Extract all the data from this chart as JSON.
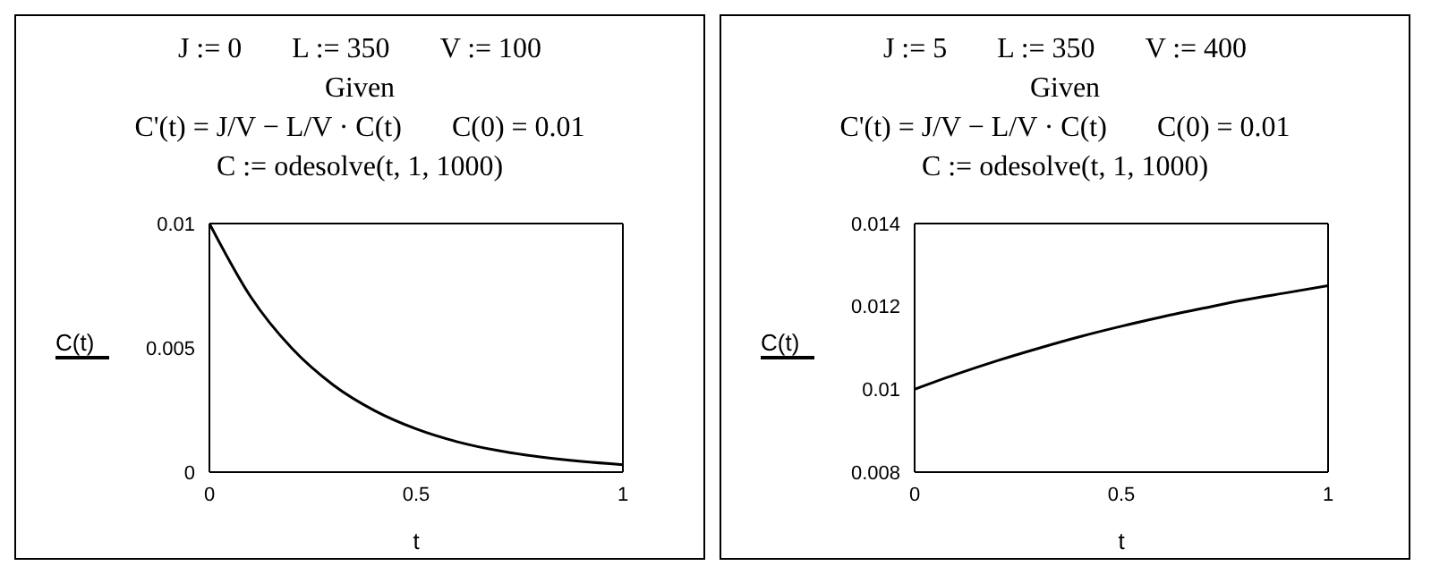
{
  "chart_data": [
    {
      "type": "line",
      "x": [
        0,
        0.1,
        0.2,
        0.3,
        0.4,
        0.5,
        0.6,
        0.7,
        0.8,
        0.9,
        1
      ],
      "series": [
        {
          "color": "#000000",
          "values": [
            0.01,
            0.00705,
            0.00497,
            0.0035,
            0.00247,
            0.00174,
            0.00122,
            0.00086,
            0.00061,
            0.00043,
            0.0003
          ]
        }
      ],
      "xlabel": "t",
      "ylabel": "C(t)",
      "xlim": [
        0,
        1
      ],
      "xticks": [
        0,
        0.5,
        1
      ],
      "ylim": [
        0,
        0.01
      ],
      "yticks": [
        0,
        0.005,
        0.01
      ],
      "annotations": [
        "J := 0",
        "L := 350",
        "V := 100",
        "Given",
        "C'(t) = J/V − L/V · C(t)",
        "C(0) = 0.01",
        "C := odesolve(t, 1, 1000)"
      ]
    },
    {
      "type": "line",
      "x": [
        0,
        0.1,
        0.2,
        0.3,
        0.4,
        0.5,
        0.6,
        0.7,
        0.8,
        0.9,
        1
      ],
      "series": [
        {
          "color": "#000000",
          "values": [
            0.01,
            0.01036,
            0.01069,
            0.01099,
            0.01127,
            0.01152,
            0.01175,
            0.01196,
            0.01216,
            0.01233,
            0.0125
          ]
        }
      ],
      "xlabel": "t",
      "ylabel": "C(t)",
      "xlim": [
        0,
        1
      ],
      "xticks": [
        0,
        0.5,
        1
      ],
      "ylim": [
        0.008,
        0.014
      ],
      "yticks": [
        0.008,
        0.01,
        0.012,
        0.014
      ],
      "annotations": [
        "J := 5",
        "L := 350",
        "V := 400",
        "Given",
        "C'(t) = J/V − L/V · C(t)",
        "C(0) = 0.01",
        "C := odesolve(t, 1, 1000)"
      ]
    }
  ]
}
